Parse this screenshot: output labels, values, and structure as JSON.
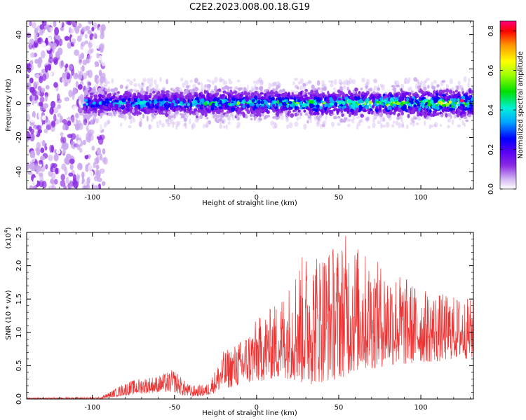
{
  "figure_title": "C2E2.2023.008.00.18.G19",
  "chart_data": [
    {
      "type": "heatmap",
      "title": "",
      "xlabel": "Height of straight line (km)",
      "ylabel": "Frequency (Hz)",
      "xlim": [
        -140,
        132
      ],
      "ylim": [
        -50,
        48
      ],
      "x_ticks": [
        -100,
        -50,
        0,
        50,
        100
      ],
      "y_ticks": [
        -40,
        -20,
        0,
        20,
        40
      ],
      "grid": false,
      "colorbar": {
        "label": "Normalized spectral amplitude",
        "range": [
          0.0,
          0.85
        ],
        "ticks": [
          0.0,
          0.2,
          0.4,
          0.6,
          0.8
        ],
        "colormap": [
          "#ffffff",
          "#c9a6ee",
          "#8a2be2",
          "#6a00f0",
          "#0000ff",
          "#00b0ff",
          "#00f0d0",
          "#00e000",
          "#a0ff00",
          "#ffff00",
          "#ffa000",
          "#ff0000",
          "#ff0080"
        ]
      },
      "description_points": {
        "noise_region": {
          "x_range": [
            -140,
            -92
          ],
          "freq_range": [
            -50,
            48
          ],
          "amplitude": 0.1
        },
        "signal_band": {
          "x_range": [
            -105,
            132
          ],
          "center_freq": 0,
          "half_width_hz": 6,
          "amplitude_start": 0.35,
          "amplitude_end": 0.55
        },
        "peak": {
          "x": 125,
          "freq": 1.5,
          "amplitude": 0.83
        }
      }
    },
    {
      "type": "line",
      "title": "",
      "xlabel": "Height of straight line (km)",
      "ylabel": "SNR (10 * v/v)",
      "y_multiplier_label": "(x10",
      "y_multiplier_exp": "4",
      "y_multiplier_close": ")",
      "xlim": [
        -140,
        132
      ],
      "ylim": [
        0,
        2.5
      ],
      "x_ticks": [
        -100,
        -50,
        0,
        50,
        100
      ],
      "y_ticks": [
        0.0,
        0.5,
        1.0,
        1.5,
        2.0,
        2.5
      ],
      "color": "#ee3333",
      "envelope": {
        "x": [
          -140,
          -95,
          -90,
          -80,
          -70,
          -60,
          -50,
          -45,
          -40,
          -30,
          -25,
          -20,
          -10,
          0,
          10,
          20,
          25,
          30,
          40,
          50,
          55,
          60,
          70,
          80,
          90,
          100,
          110,
          120,
          132
        ],
        "upper": [
          0.02,
          0.03,
          0.1,
          0.25,
          0.32,
          0.35,
          0.45,
          0.3,
          0.2,
          0.22,
          0.45,
          0.72,
          0.88,
          1.2,
          1.4,
          1.75,
          2.1,
          2.2,
          2.3,
          2.35,
          2.5,
          2.35,
          2.1,
          2.0,
          1.85,
          1.65,
          1.6,
          1.55,
          1.5
        ],
        "lower": [
          0.0,
          0.0,
          0.02,
          0.05,
          0.08,
          0.1,
          0.1,
          0.05,
          0.03,
          0.05,
          0.1,
          0.15,
          0.2,
          0.25,
          0.3,
          0.3,
          0.25,
          0.2,
          0.25,
          0.3,
          0.35,
          0.4,
          0.45,
          0.5,
          0.5,
          0.55,
          0.55,
          0.6,
          0.6
        ]
      }
    }
  ]
}
